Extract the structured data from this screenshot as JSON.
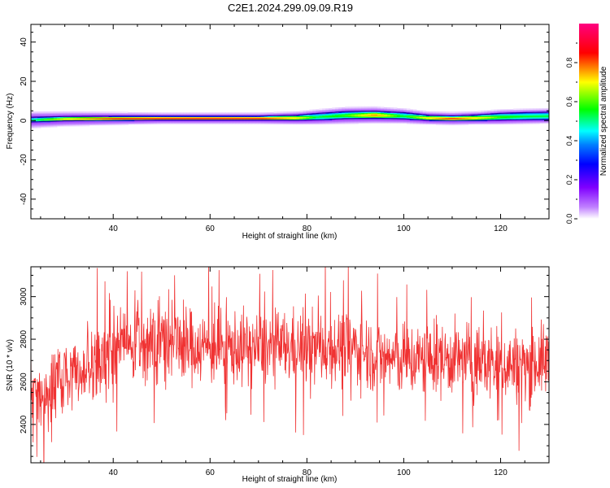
{
  "title": "C2E1.2024.299.09.09.R19",
  "chart_data": [
    {
      "type": "heatmap",
      "xlabel": "Height of straight line (km)",
      "ylabel": "Frequency (Hz)",
      "xlim": [
        23,
        130
      ],
      "ylim": [
        -50,
        49
      ],
      "xticks": [
        40,
        60,
        80,
        100,
        120
      ],
      "yticks": [
        -40,
        -20,
        0,
        20,
        40
      ],
      "colorbar": {
        "label": "Normalized spectral amplitude",
        "range": [
          0,
          1
        ],
        "ticks": [
          0.0,
          0.2,
          0.4,
          0.6,
          0.8
        ],
        "tick_labels": [
          "0.0",
          "0.2",
          "0.4",
          "0.6",
          "0.8"
        ],
        "colors": [
          "#ffffff",
          "#b400ff",
          "#0000ff",
          "#00ffff",
          "#00ff00",
          "#ffff00",
          "#ff0000",
          "#ff00ff"
        ]
      },
      "band": {
        "x": [
          23,
          30,
          40,
          50,
          60,
          70,
          78,
          82,
          88,
          94,
          100,
          105,
          110,
          115,
          120,
          125,
          130
        ],
        "center_hz": [
          0.5,
          1.0,
          1.2,
          1.3,
          1.3,
          1.3,
          1.5,
          2.0,
          2.8,
          3.0,
          2.5,
          1.5,
          1.2,
          1.5,
          2.0,
          2.3,
          2.5
        ],
        "halfwidth_hz": [
          1.2,
          1.1,
          1.1,
          1.0,
          1.0,
          1.0,
          1.3,
          1.6,
          1.8,
          1.8,
          1.6,
          1.3,
          1.2,
          1.4,
          1.7,
          1.8,
          1.8
        ],
        "peak_amplitude": [
          0.5,
          0.75,
          0.85,
          0.9,
          0.92,
          0.9,
          0.75,
          0.55,
          0.6,
          0.8,
          0.55,
          0.75,
          0.85,
          0.75,
          0.6,
          0.55,
          0.55
        ],
        "halo_halfwidth_hz": [
          4.5,
          4.0,
          3.5,
          3.0,
          3.0,
          3.0,
          3.5,
          4.0,
          4.5,
          4.5,
          4.0,
          3.5,
          3.5,
          3.5,
          4.0,
          4.0,
          4.0
        ]
      }
    },
    {
      "type": "line",
      "xlabel": "Height of straight line (km)",
      "ylabel": "SNR (10 * v/v)",
      "xlim": [
        23,
        130
      ],
      "ylim": [
        2220,
        3140
      ],
      "xticks": [
        40,
        60,
        80,
        100,
        120
      ],
      "yticks": [
        2400,
        2600,
        2800,
        3000
      ],
      "line_color": "#f03232",
      "series_trend": {
        "x": [
          23,
          28,
          35,
          40,
          45,
          50,
          60,
          70,
          80,
          90,
          95,
          100,
          110,
          120,
          125,
          130
        ],
        "y": [
          2540,
          2600,
          2680,
          2750,
          2790,
          2790,
          2760,
          2760,
          2760,
          2760,
          2720,
          2700,
          2710,
          2680,
          2680,
          2700
        ]
      },
      "noise_amplitude": 180
    }
  ]
}
